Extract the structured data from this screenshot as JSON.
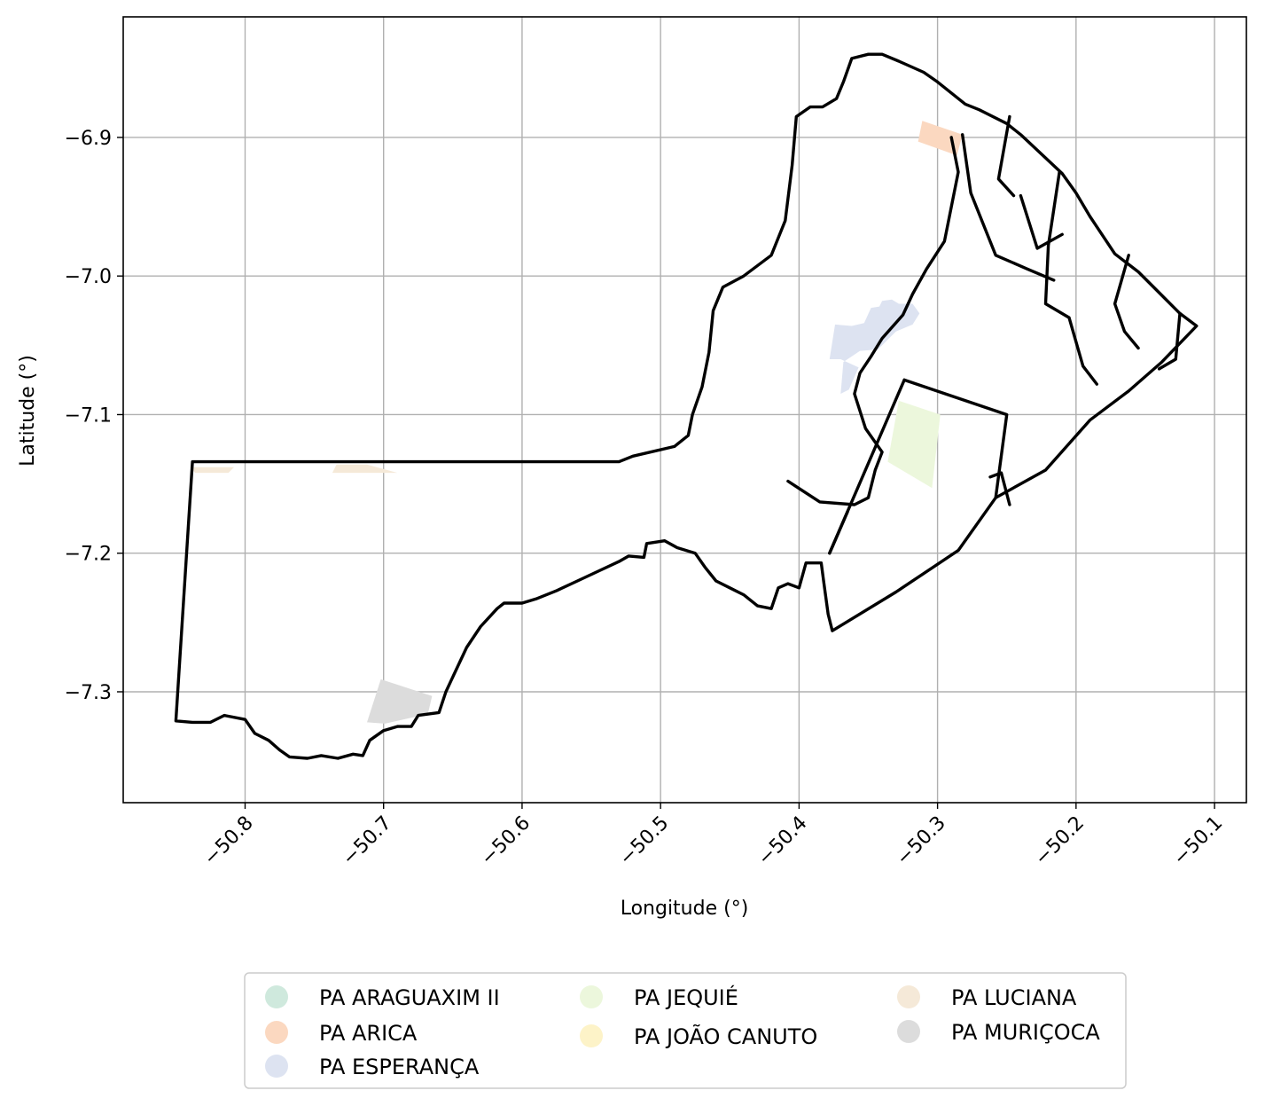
{
  "chart_data": {
    "type": "map",
    "xlabel": "Longitude (°)",
    "ylabel": "Latitude (°)",
    "xlim": [
      -50.888,
      -50.077
    ],
    "ylim": [
      -7.38,
      -6.813
    ],
    "x_ticks": [
      -50.8,
      -50.7,
      -50.6,
      -50.5,
      -50.4,
      -50.3,
      -50.2,
      -50.1
    ],
    "x_tick_labels": [
      "−50.8",
      "−50.7",
      "−50.6",
      "−50.5",
      "−50.4",
      "−50.3",
      "−50.2",
      "−50.1"
    ],
    "y_ticks": [
      -6.9,
      -7.0,
      -7.1,
      -7.2,
      -7.3
    ],
    "y_tick_labels": [
      "−6.9",
      "−7.0",
      "−7.1",
      "−7.2",
      "−7.3"
    ],
    "grid": true,
    "legend_position": "bottom-center",
    "boundary_color": "#000000",
    "settlements": [
      {
        "name": "PA ARAGUAXIM II",
        "color": "#cfe9dd",
        "polygon": []
      },
      {
        "name": "PA ARICA",
        "color": "#fbd8c0",
        "polygon": [
          [
            -50.311,
            -6.888
          ],
          [
            -50.282,
            -6.898
          ],
          [
            -50.286,
            -6.913
          ],
          [
            -50.314,
            -6.903
          ]
        ]
      },
      {
        "name": "PA ESPERANÇA",
        "color": "#dde3f1",
        "polygon": [
          [
            -50.348,
            -7.023
          ],
          [
            -50.342,
            -7.022
          ],
          [
            -50.34,
            -7.018
          ],
          [
            -50.333,
            -7.017
          ],
          [
            -50.328,
            -7.02
          ],
          [
            -50.318,
            -7.02
          ],
          [
            -50.313,
            -7.027
          ],
          [
            -50.318,
            -7.035
          ],
          [
            -50.33,
            -7.04
          ],
          [
            -50.338,
            -7.048
          ],
          [
            -50.343,
            -7.053
          ],
          [
            -50.356,
            -7.054
          ],
          [
            -50.368,
            -7.062
          ],
          [
            -50.37,
            -7.085
          ],
          [
            -50.364,
            -7.082
          ],
          [
            -50.357,
            -7.066
          ],
          [
            -50.37,
            -7.06
          ],
          [
            -50.378,
            -7.06
          ],
          [
            -50.374,
            -7.035
          ],
          [
            -50.362,
            -7.036
          ],
          [
            -50.353,
            -7.034
          ]
        ]
      },
      {
        "name": "PA JEQUIÉ",
        "color": "#ecf7dc",
        "polygon": [
          [
            -50.328,
            -7.09
          ],
          [
            -50.298,
            -7.1
          ],
          [
            -50.304,
            -7.153
          ],
          [
            -50.336,
            -7.134
          ]
        ]
      },
      {
        "name": "PA JOÃO CANUTO",
        "color": "#fdf3c8",
        "polygon": []
      },
      {
        "name": "PA LUCIANA",
        "color": "#f5e9d8",
        "polygon": [
          [
            -50.84,
            -7.138
          ],
          [
            -50.808,
            -7.138
          ],
          [
            -50.812,
            -7.142
          ],
          [
            -50.836,
            -7.142
          ]
        ]
      },
      {
        "name": "PA LUCIANA",
        "color": "#f5e9d8",
        "polygon": [
          [
            -50.734,
            -7.136
          ],
          [
            -50.712,
            -7.136
          ],
          [
            -50.69,
            -7.142
          ],
          [
            -50.737,
            -7.142
          ]
        ]
      },
      {
        "name": "PA MURIÇOCA",
        "color": "#dcdcdc",
        "polygon": [
          [
            -50.702,
            -7.291
          ],
          [
            -50.665,
            -7.303
          ],
          [
            -50.668,
            -7.316
          ],
          [
            -50.699,
            -7.323
          ],
          [
            -50.712,
            -7.322
          ]
        ]
      }
    ],
    "boundaries": [
      [
        [
          -50.85,
          -7.321
        ],
        [
          -50.838,
          -7.322
        ],
        [
          -50.825,
          -7.322
        ],
        [
          -50.815,
          -7.317
        ],
        [
          -50.8,
          -7.32
        ],
        [
          -50.793,
          -7.33
        ],
        [
          -50.783,
          -7.335
        ],
        [
          -50.775,
          -7.342
        ],
        [
          -50.768,
          -7.347
        ],
        [
          -50.755,
          -7.348
        ],
        [
          -50.745,
          -7.346
        ],
        [
          -50.733,
          -7.348
        ],
        [
          -50.722,
          -7.345
        ],
        [
          -50.715,
          -7.346
        ],
        [
          -50.71,
          -7.335
        ],
        [
          -50.7,
          -7.328
        ],
        [
          -50.69,
          -7.325
        ],
        [
          -50.68,
          -7.325
        ],
        [
          -50.675,
          -7.317
        ],
        [
          -50.66,
          -7.315
        ],
        [
          -50.655,
          -7.3
        ],
        [
          -50.648,
          -7.285
        ],
        [
          -50.64,
          -7.268
        ],
        [
          -50.63,
          -7.253
        ],
        [
          -50.618,
          -7.24
        ],
        [
          -50.613,
          -7.236
        ],
        [
          -50.6,
          -7.236
        ],
        [
          -50.59,
          -7.233
        ],
        [
          -50.575,
          -7.227
        ],
        [
          -50.56,
          -7.22
        ],
        [
          -50.545,
          -7.213
        ],
        [
          -50.53,
          -7.206
        ],
        [
          -50.523,
          -7.202
        ],
        [
          -50.512,
          -7.203
        ],
        [
          -50.51,
          -7.193
        ],
        [
          -50.497,
          -7.191
        ],
        [
          -50.488,
          -7.196
        ],
        [
          -50.475,
          -7.2
        ],
        [
          -50.468,
          -7.21
        ],
        [
          -50.46,
          -7.22
        ],
        [
          -50.45,
          -7.225
        ],
        [
          -50.44,
          -7.23
        ],
        [
          -50.43,
          -7.238
        ],
        [
          -50.42,
          -7.24
        ],
        [
          -50.415,
          -7.225
        ],
        [
          -50.408,
          -7.222
        ],
        [
          -50.4,
          -7.225
        ],
        [
          -50.395,
          -7.207
        ],
        [
          -50.384,
          -7.207
        ],
        [
          -50.382,
          -7.222
        ],
        [
          -50.379,
          -7.244
        ],
        [
          -50.376,
          -7.256
        ],
        [
          -50.33,
          -7.228
        ],
        [
          -50.285,
          -7.198
        ],
        [
          -50.258,
          -7.16
        ],
        [
          -50.222,
          -7.14
        ],
        [
          -50.19,
          -7.104
        ],
        [
          -50.162,
          -7.083
        ],
        [
          -50.138,
          -7.062
        ],
        [
          -50.113,
          -7.036
        ],
        [
          -50.125,
          -7.027
        ],
        [
          -50.14,
          -7.012
        ],
        [
          -50.155,
          -6.997
        ],
        [
          -50.172,
          -6.984
        ],
        [
          -50.19,
          -6.957
        ],
        [
          -50.2,
          -6.94
        ],
        [
          -50.21,
          -6.926
        ],
        [
          -50.24,
          -6.898
        ],
        [
          -50.25,
          -6.89
        ],
        [
          -50.27,
          -6.88
        ],
        [
          -50.28,
          -6.876
        ],
        [
          -50.3,
          -6.86
        ],
        [
          -50.31,
          -6.853
        ],
        [
          -50.328,
          -6.845
        ],
        [
          -50.34,
          -6.84
        ],
        [
          -50.35,
          -6.84
        ],
        [
          -50.362,
          -6.843
        ],
        [
          -50.368,
          -6.86
        ],
        [
          -50.373,
          -6.872
        ],
        [
          -50.383,
          -6.878
        ],
        [
          -50.392,
          -6.878
        ],
        [
          -50.402,
          -6.885
        ],
        [
          -50.405,
          -6.92
        ],
        [
          -50.41,
          -6.96
        ],
        [
          -50.42,
          -6.985
        ],
        [
          -50.44,
          -7.0
        ],
        [
          -50.455,
          -7.008
        ],
        [
          -50.462,
          -7.025
        ],
        [
          -50.465,
          -7.055
        ],
        [
          -50.47,
          -7.08
        ],
        [
          -50.477,
          -7.1
        ],
        [
          -50.48,
          -7.115
        ],
        [
          -50.49,
          -7.123
        ],
        [
          -50.52,
          -7.13
        ],
        [
          -50.53,
          -7.134
        ],
        [
          -50.62,
          -7.134
        ],
        [
          -50.75,
          -7.134
        ],
        [
          -50.838,
          -7.134
        ],
        [
          -50.85,
          -7.321
        ]
      ],
      [
        [
          -50.408,
          -7.148
        ],
        [
          -50.402,
          -7.152
        ],
        [
          -50.385,
          -7.163
        ],
        [
          -50.36,
          -7.165
        ],
        [
          -50.35,
          -7.16
        ],
        [
          -50.345,
          -7.14
        ],
        [
          -50.34,
          -7.127
        ],
        [
          -50.352,
          -7.11
        ],
        [
          -50.36,
          -7.085
        ],
        [
          -50.356,
          -7.07
        ],
        [
          -50.348,
          -7.058
        ],
        [
          -50.34,
          -7.045
        ],
        [
          -50.325,
          -7.028
        ],
        [
          -50.318,
          -7.013
        ],
        [
          -50.308,
          -6.995
        ],
        [
          -50.295,
          -6.975
        ],
        [
          -50.29,
          -6.95
        ],
        [
          -50.285,
          -6.925
        ],
        [
          -50.29,
          -6.9
        ]
      ],
      [
        [
          -50.324,
          -7.075
        ],
        [
          -50.25,
          -7.1
        ],
        [
          -50.258,
          -7.16
        ]
      ],
      [
        [
          -50.324,
          -7.075
        ],
        [
          -50.378,
          -7.2
        ]
      ],
      [
        [
          -50.365,
          -7.17
        ],
        [
          -50.378,
          -7.2
        ]
      ],
      [
        [
          -50.282,
          -6.898
        ],
        [
          -50.276,
          -6.94
        ],
        [
          -50.258,
          -6.985
        ],
        [
          -50.235,
          -6.995
        ],
        [
          -50.216,
          -7.003
        ]
      ],
      [
        [
          -50.248,
          -6.885
        ],
        [
          -50.256,
          -6.93
        ],
        [
          -50.245,
          -6.942
        ]
      ],
      [
        [
          -50.24,
          -6.942
        ],
        [
          -50.228,
          -6.98
        ],
        [
          -50.21,
          -6.97
        ]
      ],
      [
        [
          -50.212,
          -6.925
        ],
        [
          -50.22,
          -6.978
        ],
        [
          -50.222,
          -7.02
        ],
        [
          -50.205,
          -7.03
        ],
        [
          -50.195,
          -7.065
        ],
        [
          -50.185,
          -7.078
        ]
      ],
      [
        [
          -50.162,
          -6.985
        ],
        [
          -50.172,
          -7.02
        ],
        [
          -50.165,
          -7.04
        ],
        [
          -50.155,
          -7.052
        ]
      ],
      [
        [
          -50.125,
          -7.027
        ],
        [
          -50.128,
          -7.06
        ],
        [
          -50.14,
          -7.067
        ]
      ],
      [
        [
          -50.248,
          -7.165
        ],
        [
          -50.254,
          -7.142
        ],
        [
          -50.262,
          -7.145
        ]
      ]
    ],
    "legend": {
      "columns": [
        [
          "PA ARAGUAXIM II",
          "PA ARICA",
          "PA ESPERANÇA"
        ],
        [
          "PA JEQUIÉ",
          "PA JOÃO CANUTO"
        ],
        [
          "PA LUCIANA",
          "PA MURIÇOCA"
        ]
      ],
      "colors": {
        "PA ARAGUAXIM II": "#cfe9dd",
        "PA ARICA": "#fbd8c0",
        "PA ESPERANÇA": "#dde3f1",
        "PA JEQUIÉ": "#ecf7dc",
        "PA JOÃO CANUTO": "#fdf3c8",
        "PA LUCIANA": "#f5e9d8",
        "PA MURIÇOCA": "#dcdcdc"
      }
    }
  }
}
